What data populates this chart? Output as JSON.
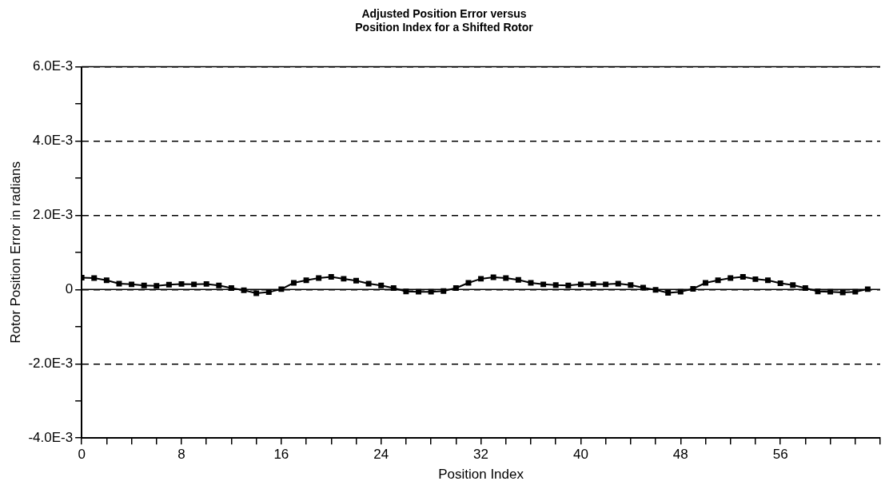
{
  "chart_data": {
    "type": "line",
    "title": "Adjusted Position Error versus\nPosition Index for a Shifted Rotor",
    "xlabel": "Position Index",
    "ylabel": "Rotor Position Error in radians",
    "x": [
      0,
      1,
      2,
      3,
      4,
      5,
      6,
      7,
      8,
      9,
      10,
      11,
      12,
      13,
      14,
      15,
      16,
      17,
      18,
      19,
      20,
      21,
      22,
      23,
      24,
      25,
      26,
      27,
      28,
      29,
      30,
      31,
      32,
      33,
      34,
      35,
      36,
      37,
      38,
      39,
      40,
      41,
      42,
      43,
      44,
      45,
      46,
      47,
      48,
      49,
      50,
      51,
      52,
      53,
      54,
      55,
      56,
      57,
      58,
      59,
      60,
      61,
      62,
      63
    ],
    "series": [
      {
        "color": "#000000",
        "values": [
          0.00032,
          0.00031,
          0.00025,
          0.00016,
          0.00014,
          0.00011,
          0.0001,
          0.00013,
          0.00015,
          0.00014,
          0.00015,
          0.00011,
          4e-05,
          -2e-05,
          -0.0001,
          -7e-05,
          1e-05,
          0.00018,
          0.00025,
          0.00031,
          0.00034,
          0.00029,
          0.00024,
          0.00016,
          0.00011,
          4e-05,
          -5e-05,
          -6e-05,
          -6e-05,
          -4e-05,
          4e-05,
          0.00018,
          0.00029,
          0.00033,
          0.00031,
          0.00026,
          0.00018,
          0.00014,
          0.00012,
          0.00011,
          0.00014,
          0.00015,
          0.00014,
          0.00016,
          0.00012,
          5e-05,
          -1e-05,
          -9e-05,
          -6e-05,
          2e-05,
          0.00018,
          0.00025,
          0.00031,
          0.00034,
          0.00028,
          0.00025,
          0.00017,
          0.00012,
          4e-05,
          -5e-05,
          -6e-05,
          -8e-05,
          -6e-05,
          1e-05
        ]
      }
    ],
    "xlim": [
      0,
      64
    ],
    "xticks": [
      0,
      {
        "value": 2,
        "label": null
      },
      {
        "value": 4,
        "label": null
      },
      {
        "value": 6,
        "label": null
      },
      8,
      {
        "value": 10,
        "label": null
      },
      {
        "value": 12,
        "label": null
      },
      {
        "value": 14,
        "label": null
      },
      16,
      {
        "value": 18,
        "label": null
      },
      {
        "value": 20,
        "label": null
      },
      {
        "value": 22,
        "label": null
      },
      24,
      {
        "value": 26,
        "label": null
      },
      {
        "value": 28,
        "label": null
      },
      {
        "value": 30,
        "label": null
      },
      32,
      {
        "value": 34,
        "label": null
      },
      {
        "value": 36,
        "label": null
      },
      {
        "value": 38,
        "label": null
      },
      40,
      {
        "value": 42,
        "label": null
      },
      {
        "value": 44,
        "label": null
      },
      {
        "value": 46,
        "label": null
      },
      48,
      {
        "value": 50,
        "label": null
      },
      {
        "value": 52,
        "label": null
      },
      {
        "value": 54,
        "label": null
      },
      56,
      {
        "value": 58,
        "label": null
      },
      {
        "value": 60,
        "label": null
      },
      {
        "value": 62,
        "label": null
      },
      {
        "value": 64,
        "label": null
      }
    ],
    "ylim": [
      -0.004,
      0.006
    ],
    "yticks": [
      {
        "value": -0.004,
        "label": "-4.0E-3"
      },
      {
        "value": -0.003,
        "label": null
      },
      {
        "value": -0.002,
        "label": "-2.0E-3"
      },
      {
        "value": -0.001,
        "label": null
      },
      {
        "value": 0,
        "label": "0"
      },
      {
        "value": 0.001,
        "label": null
      },
      {
        "value": 0.002,
        "label": "2.0E-3"
      },
      {
        "value": 0.003,
        "label": null
      },
      {
        "value": 0.004,
        "label": "4.0E-3"
      },
      {
        "value": 0.005,
        "label": null
      },
      {
        "value": 0.006,
        "label": "6.0E-3"
      }
    ],
    "ref_lines": [
      {
        "axis": "y",
        "value": 0,
        "color": "#000000",
        "line_style": "solid"
      }
    ],
    "grid": "y",
    "legend": false,
    "marker": "square",
    "line_style": "solid"
  }
}
